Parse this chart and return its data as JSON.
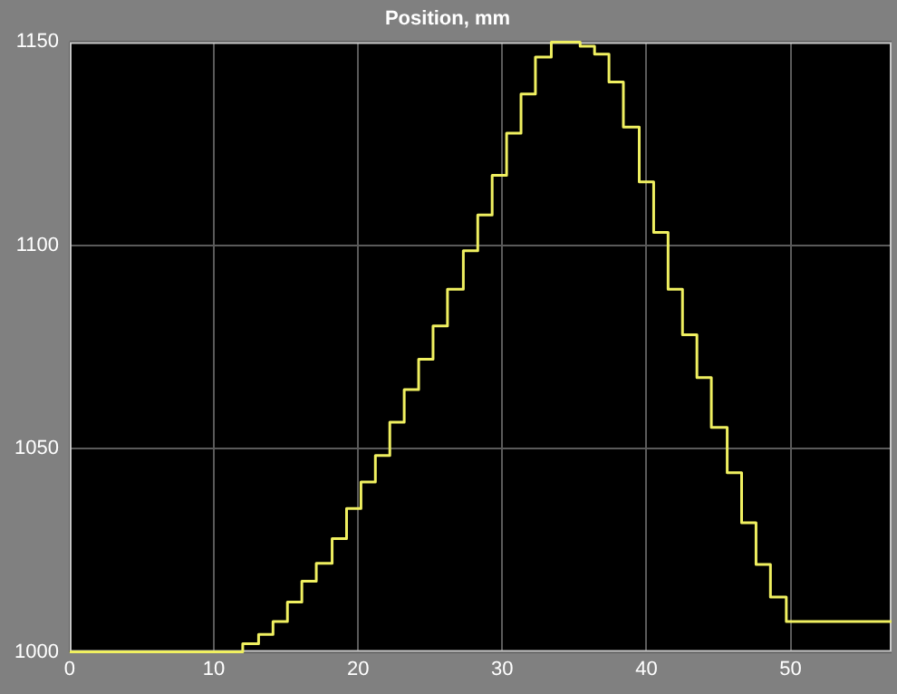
{
  "chart_data": {
    "type": "step",
    "title": "Position, mm",
    "x": [
      0,
      12.0,
      13.1,
      14.1,
      15.1,
      16.1,
      17.1,
      18.2,
      19.2,
      20.2,
      21.2,
      22.2,
      23.2,
      24.2,
      25.2,
      26.2,
      27.3,
      28.3,
      29.3,
      30.3,
      31.3,
      32.3,
      33.4,
      35.4,
      36.4,
      37.4,
      38.4,
      39.5,
      40.5,
      41.5,
      42.5,
      43.5,
      44.5,
      45.6,
      46.6,
      47.6,
      48.6,
      49.7,
      57
    ],
    "series": [
      {
        "color": "#f0f060",
        "values": [
          1000,
          1002,
          1004.3,
          1007.5,
          1012.3,
          1017.4,
          1021.8,
          1027.9,
          1035.3,
          1041.8,
          1048.3,
          1056.5,
          1064.5,
          1072,
          1080.2,
          1089.2,
          1098.7,
          1107.5,
          1117.2,
          1127.6,
          1137.2,
          1146.3,
          1150,
          1149,
          1147,
          1140.2,
          1129.1,
          1115.6,
          1103.2,
          1089.2,
          1078,
          1067.5,
          1055.2,
          1044.1,
          1031.8,
          1021.5,
          1013.5,
          1007.5,
          1007.5
        ]
      }
    ],
    "xlim": [
      0,
      57
    ],
    "xticks": [
      0,
      10,
      20,
      30,
      40,
      50
    ],
    "ylim": [
      1000,
      1150
    ],
    "yticks": [
      1000,
      1050,
      1100,
      1150
    ],
    "grid": true,
    "legend": false,
    "marker": "none",
    "line_style": "solid"
  }
}
